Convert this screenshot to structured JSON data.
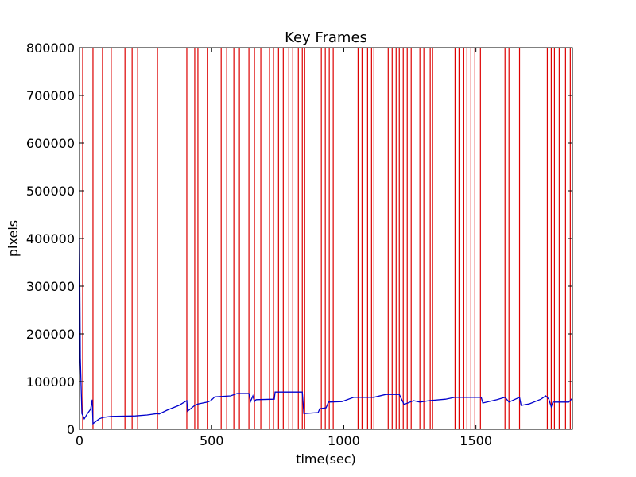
{
  "chart_data": {
    "type": "line",
    "title": "Key Frames",
    "x_label": "time(sec)",
    "y_label": "pixels",
    "xlim": [
      0,
      1865
    ],
    "ylim": [
      0,
      800000
    ],
    "xticks": [
      0,
      500,
      1000,
      1500
    ],
    "yticks": [
      0,
      100000,
      200000,
      300000,
      400000,
      500000,
      600000,
      700000,
      800000
    ],
    "line_color": "#0000cc",
    "key_frame_color": "#dd0000",
    "x": [
      0,
      3,
      9,
      18,
      30,
      42,
      48,
      51,
      75,
      90,
      120,
      211,
      256,
      295,
      301,
      331,
      376,
      406,
      409,
      436,
      448,
      485,
      497,
      512,
      572,
      596,
      641,
      647,
      656,
      662,
      668,
      737,
      740,
      843,
      849,
      903,
      909,
      933,
      942,
      993,
      1038,
      1114,
      1159,
      1210,
      1228,
      1264,
      1288,
      1324,
      1385,
      1421,
      1520,
      1526,
      1580,
      1610,
      1625,
      1665,
      1671,
      1701,
      1746,
      1764,
      1776,
      1785,
      1791,
      1851,
      1865
    ],
    "values": [
      400000,
      150000,
      33000,
      22000,
      33000,
      42000,
      62000,
      12000,
      22000,
      25000,
      27000,
      28000,
      30000,
      33000,
      32000,
      40000,
      50000,
      60000,
      38000,
      50000,
      53000,
      57000,
      60000,
      68000,
      70000,
      75000,
      75000,
      58000,
      70000,
      58000,
      62000,
      63000,
      78000,
      78000,
      33000,
      35000,
      43000,
      45000,
      57000,
      58000,
      67000,
      67000,
      73000,
      73000,
      52000,
      60000,
      57000,
      60000,
      63000,
      67000,
      67000,
      55000,
      62000,
      67000,
      57000,
      67000,
      50000,
      53000,
      63000,
      70000,
      63000,
      47000,
      57000,
      57000,
      65000
    ],
    "key_frames": [
      12,
      51,
      87,
      120,
      172,
      199,
      220,
      295,
      406,
      436,
      448,
      485,
      536,
      557,
      584,
      605,
      641,
      662,
      686,
      719,
      734,
      753,
      771,
      792,
      807,
      828,
      843,
      852,
      915,
      930,
      945,
      960,
      1054,
      1069,
      1090,
      1105,
      1114,
      1168,
      1183,
      1198,
      1210,
      1225,
      1240,
      1255,
      1288,
      1303,
      1327,
      1336,
      1421,
      1436,
      1454,
      1466,
      1481,
      1496,
      1517,
      1610,
      1625,
      1665,
      1770,
      1785,
      1797,
      1815,
      1839,
      1857
    ]
  }
}
